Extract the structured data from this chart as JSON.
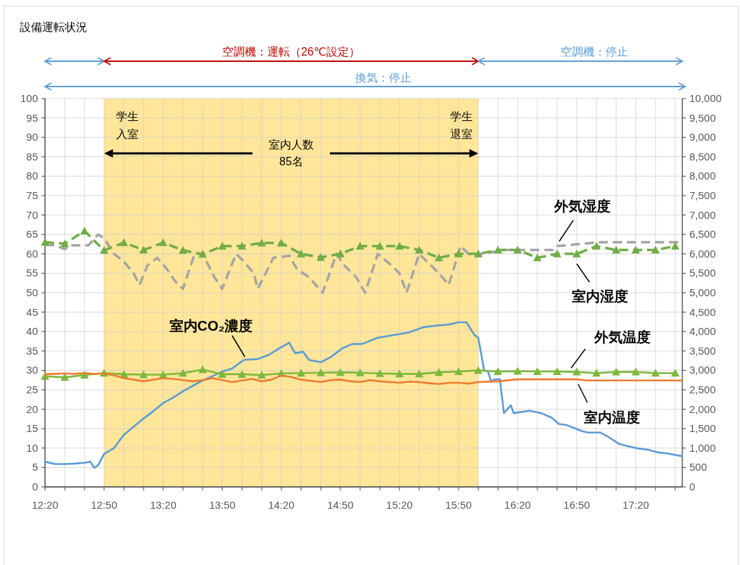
{
  "chart_data": {
    "type": "line",
    "title": "設備運転状況",
    "xlim": [
      12.333,
      17.727
    ],
    "xticks": [
      {
        "value": 12.333,
        "label": "12:20"
      },
      {
        "value": 12.5,
        "label": null
      },
      {
        "value": 12.667,
        "label": null
      },
      {
        "value": 12.833,
        "label": "12:50"
      },
      {
        "value": 13.0,
        "label": null
      },
      {
        "value": 13.167,
        "label": null
      },
      {
        "value": 13.333,
        "label": "13:20"
      },
      {
        "value": 13.5,
        "label": null
      },
      {
        "value": 13.667,
        "label": null
      },
      {
        "value": 13.833,
        "label": "13:50"
      },
      {
        "value": 14.0,
        "label": null
      },
      {
        "value": 14.167,
        "label": null
      },
      {
        "value": 14.333,
        "label": "14:20"
      },
      {
        "value": 14.5,
        "label": null
      },
      {
        "value": 14.667,
        "label": null
      },
      {
        "value": 14.833,
        "label": "14:50"
      },
      {
        "value": 15.0,
        "label": null
      },
      {
        "value": 15.167,
        "label": null
      },
      {
        "value": 15.333,
        "label": "15:20"
      },
      {
        "value": 15.5,
        "label": null
      },
      {
        "value": 15.667,
        "label": null
      },
      {
        "value": 15.833,
        "label": "15:50"
      },
      {
        "value": 16.0,
        "label": null
      },
      {
        "value": 16.167,
        "label": null
      },
      {
        "value": 16.333,
        "label": "16:20"
      },
      {
        "value": 16.5,
        "label": null
      },
      {
        "value": 16.667,
        "label": null
      },
      {
        "value": 16.833,
        "label": "16:50"
      },
      {
        "value": 17.0,
        "label": null
      },
      {
        "value": 17.167,
        "label": null
      },
      {
        "value": 17.333,
        "label": "17:20"
      },
      {
        "value": 17.5,
        "label": null
      },
      {
        "value": 17.667,
        "label": null
      }
    ],
    "ylim": [
      0,
      100
    ],
    "yticks": [
      0,
      5,
      10,
      15,
      20,
      25,
      30,
      35,
      40,
      45,
      50,
      55,
      60,
      65,
      70,
      75,
      80,
      85,
      90,
      95,
      100
    ],
    "y2lim": [
      0,
      10000
    ],
    "y2ticks": [
      0,
      500,
      {
        "value": 1000,
        "label": "1,000"
      },
      {
        "value": 1500,
        "label": "1,500"
      },
      {
        "value": 2000,
        "label": "2,000"
      },
      {
        "value": 2500,
        "label": "2,500"
      },
      {
        "value": 3000,
        "label": "3,000"
      },
      {
        "value": 3500,
        "label": "3,500"
      },
      {
        "value": 4000,
        "label": "4,000"
      },
      {
        "value": 4500,
        "label": "4,500"
      },
      {
        "value": 5000,
        "label": "5,000"
      },
      {
        "value": 5500,
        "label": "5,500"
      },
      {
        "value": 6000,
        "label": "6,000"
      },
      {
        "value": 6500,
        "label": "6,500"
      },
      {
        "value": 7000,
        "label": "7,000"
      },
      {
        "value": 7500,
        "label": "7,500"
      },
      {
        "value": 8000,
        "label": "8,000"
      },
      {
        "value": 8500,
        "label": "8,500"
      },
      {
        "value": 9000,
        "label": "9,000"
      },
      {
        "value": 9500,
        "label": "9,500"
      },
      {
        "value": 10000,
        "label": "10,000"
      }
    ],
    "grid": true,
    "x": [
      12.333,
      12.5,
      12.667,
      12.833,
      13.0,
      13.167,
      13.333,
      13.5,
      13.667,
      13.833,
      14.0,
      14.167,
      14.333,
      14.5,
      14.667,
      14.833,
      15.0,
      15.167,
      15.333,
      15.5,
      15.667,
      15.833,
      16.0,
      16.167,
      16.333,
      16.5,
      16.667,
      16.833,
      17.0,
      17.167,
      17.333,
      17.5,
      17.667
    ],
    "bands": [
      {
        "axis": "x",
        "from": 12.833,
        "to": 16.0,
        "color": "#ffe699"
      }
    ],
    "series": [
      {
        "name": "室内CO₂濃度",
        "color": "#5b9bd5",
        "axis": "y2",
        "line_style": "solid",
        "marker": "none",
        "x": [
          12.333,
          12.417,
          12.5,
          12.583,
          12.667,
          12.717,
          12.75,
          12.783,
          12.833,
          12.917,
          13.0,
          13.083,
          13.167,
          13.25,
          13.333,
          13.417,
          13.5,
          13.583,
          13.667,
          13.75,
          13.833,
          13.917,
          14.017,
          14.133,
          14.2,
          14.233,
          14.317,
          14.4,
          14.45,
          14.517,
          14.567,
          14.667,
          14.75,
          14.85,
          14.933,
          15.017,
          15.15,
          15.283,
          15.417,
          15.533,
          15.633,
          15.75,
          15.833,
          15.9,
          15.967,
          16.0,
          16.05,
          16.083,
          16.11,
          16.133,
          16.183,
          16.217,
          16.275,
          16.3,
          16.433,
          16.533,
          16.617,
          16.683,
          16.75,
          16.883,
          16.933,
          17.033,
          17.1,
          17.183,
          17.25,
          17.35,
          17.433,
          17.517,
          17.6,
          17.725
        ],
        "values": [
          650,
          590,
          590,
          600,
          620,
          650,
          490,
          560,
          850,
          1000,
          1340,
          1550,
          1760,
          1950,
          2160,
          2300,
          2460,
          2600,
          2740,
          2850,
          2970,
          3050,
          3270,
          3290,
          3370,
          3410,
          3570,
          3710,
          3440,
          3480,
          3270,
          3210,
          3340,
          3570,
          3680,
          3680,
          3840,
          3910,
          3980,
          4110,
          4150,
          4180,
          4240,
          4240,
          3910,
          3840,
          3000,
          2970,
          2700,
          2770,
          2770,
          1900,
          2100,
          1900,
          1960,
          1900,
          1790,
          1620,
          1590,
          1430,
          1400,
          1400,
          1290,
          1120,
          1060,
          990,
          960,
          890,
          860,
          790
        ]
      },
      {
        "name": "外気湿度",
        "color": "#a5a5a5",
        "line_style": "dashed",
        "marker": "none",
        "x": [
          12.333,
          12.417,
          12.5,
          12.55,
          12.7,
          12.783,
          12.833,
          12.917,
          13.0,
          13.083,
          13.133,
          13.2,
          13.283,
          13.367,
          13.433,
          13.5,
          13.6,
          13.667,
          13.767,
          13.833,
          13.95,
          14.017,
          14.1,
          14.133,
          14.267,
          14.4,
          14.467,
          14.567,
          14.683,
          14.8,
          14.867,
          14.967,
          15.042,
          15.15,
          15.267,
          15.333,
          15.393,
          15.5,
          15.6,
          15.667,
          15.75,
          15.85,
          15.917,
          16.033,
          16.217,
          16.633,
          16.667,
          17.033,
          17.727
        ],
        "values": [
          62.3,
          62.2,
          61.2,
          62.2,
          62.2,
          65,
          64,
          60,
          58,
          55,
          52,
          57,
          59,
          56,
          53,
          51,
          60,
          60,
          54,
          51,
          60,
          58,
          55,
          51,
          59,
          59.5,
          56,
          54,
          50,
          60,
          57,
          54,
          50,
          60,
          57,
          55,
          50,
          60,
          57,
          55,
          52,
          62,
          60,
          60,
          61,
          61,
          62,
          63,
          63
        ]
      },
      {
        "name": "室内湿度",
        "color": "#70ad47",
        "line_style": "dashed",
        "marker": "triangle",
        "values": [
          63.0,
          62.6,
          65.9,
          60.9,
          62.9,
          61.0,
          62.9,
          60.9,
          59.9,
          62.0,
          62.0,
          62.8,
          62.8,
          60.0,
          59.1,
          60.0,
          62.0,
          62.0,
          62.0,
          61.0,
          59.0,
          60.0,
          60.0,
          61.0,
          61.0,
          59.0,
          60.0,
          60.0,
          62.0,
          61.0,
          61.0,
          61.0,
          62.0
        ]
      },
      {
        "name": "外気温度",
        "color": "#7db83a",
        "line_style": "solid",
        "marker": "triangle",
        "values": [
          28.5,
          28.2,
          28.8,
          29.3,
          29.0,
          28.9,
          28.9,
          29.3,
          30.2,
          29.0,
          29.0,
          28.8,
          29.2,
          29.3,
          29.4,
          29.5,
          29.4,
          29.2,
          29.1,
          29.1,
          29.5,
          29.7,
          30.0,
          29.7,
          29.8,
          29.7,
          29.7,
          29.6,
          29.3,
          29.6,
          29.6,
          29.3,
          29.3
        ]
      },
      {
        "name": "室内温度",
        "color": "#ed7d31",
        "line_style": "solid",
        "marker": "none",
        "x": [
          12.333,
          12.417,
          12.5,
          12.583,
          12.667,
          12.75,
          12.833,
          12.917,
          13.0,
          13.083,
          13.167,
          13.25,
          13.333,
          13.417,
          13.5,
          13.583,
          13.667,
          13.75,
          13.833,
          13.917,
          14.0,
          14.083,
          14.167,
          14.25,
          14.333,
          14.417,
          14.5,
          14.583,
          14.667,
          14.75,
          14.833,
          14.917,
          15.0,
          15.083,
          15.167,
          15.25,
          15.333,
          15.417,
          15.5,
          15.583,
          15.667,
          15.75,
          15.833,
          15.917,
          16.0,
          16.167,
          16.333,
          16.5,
          16.833,
          16.917,
          17.727
        ],
        "values": [
          29.0,
          29.1,
          29.2,
          29.1,
          29.3,
          29.1,
          29.2,
          28.7,
          28.0,
          27.6,
          27.2,
          27.6,
          28.0,
          27.8,
          27.5,
          27.2,
          27.5,
          28.0,
          27.5,
          27.0,
          27.4,
          27.8,
          27.2,
          27.6,
          28.7,
          28.3,
          27.6,
          27.3,
          27.0,
          27.5,
          27.6,
          27.2,
          27.0,
          27.5,
          27.2,
          27.0,
          26.8,
          27.1,
          27.0,
          26.7,
          26.5,
          26.8,
          26.8,
          26.6,
          27.0,
          27.2,
          27.7,
          27.7,
          27.7,
          27.4,
          27.4
        ]
      }
    ],
    "annotations": [
      "空調機：運転（26℃設定）",
      "空調機：停止",
      "換気：停止",
      {
        "text": "学生入室",
        "x": 12.833,
        "y": 93
      },
      {
        "text": "学生退室",
        "x": 16.0,
        "y": 93
      },
      "室内人数\n85名"
    ]
  }
}
